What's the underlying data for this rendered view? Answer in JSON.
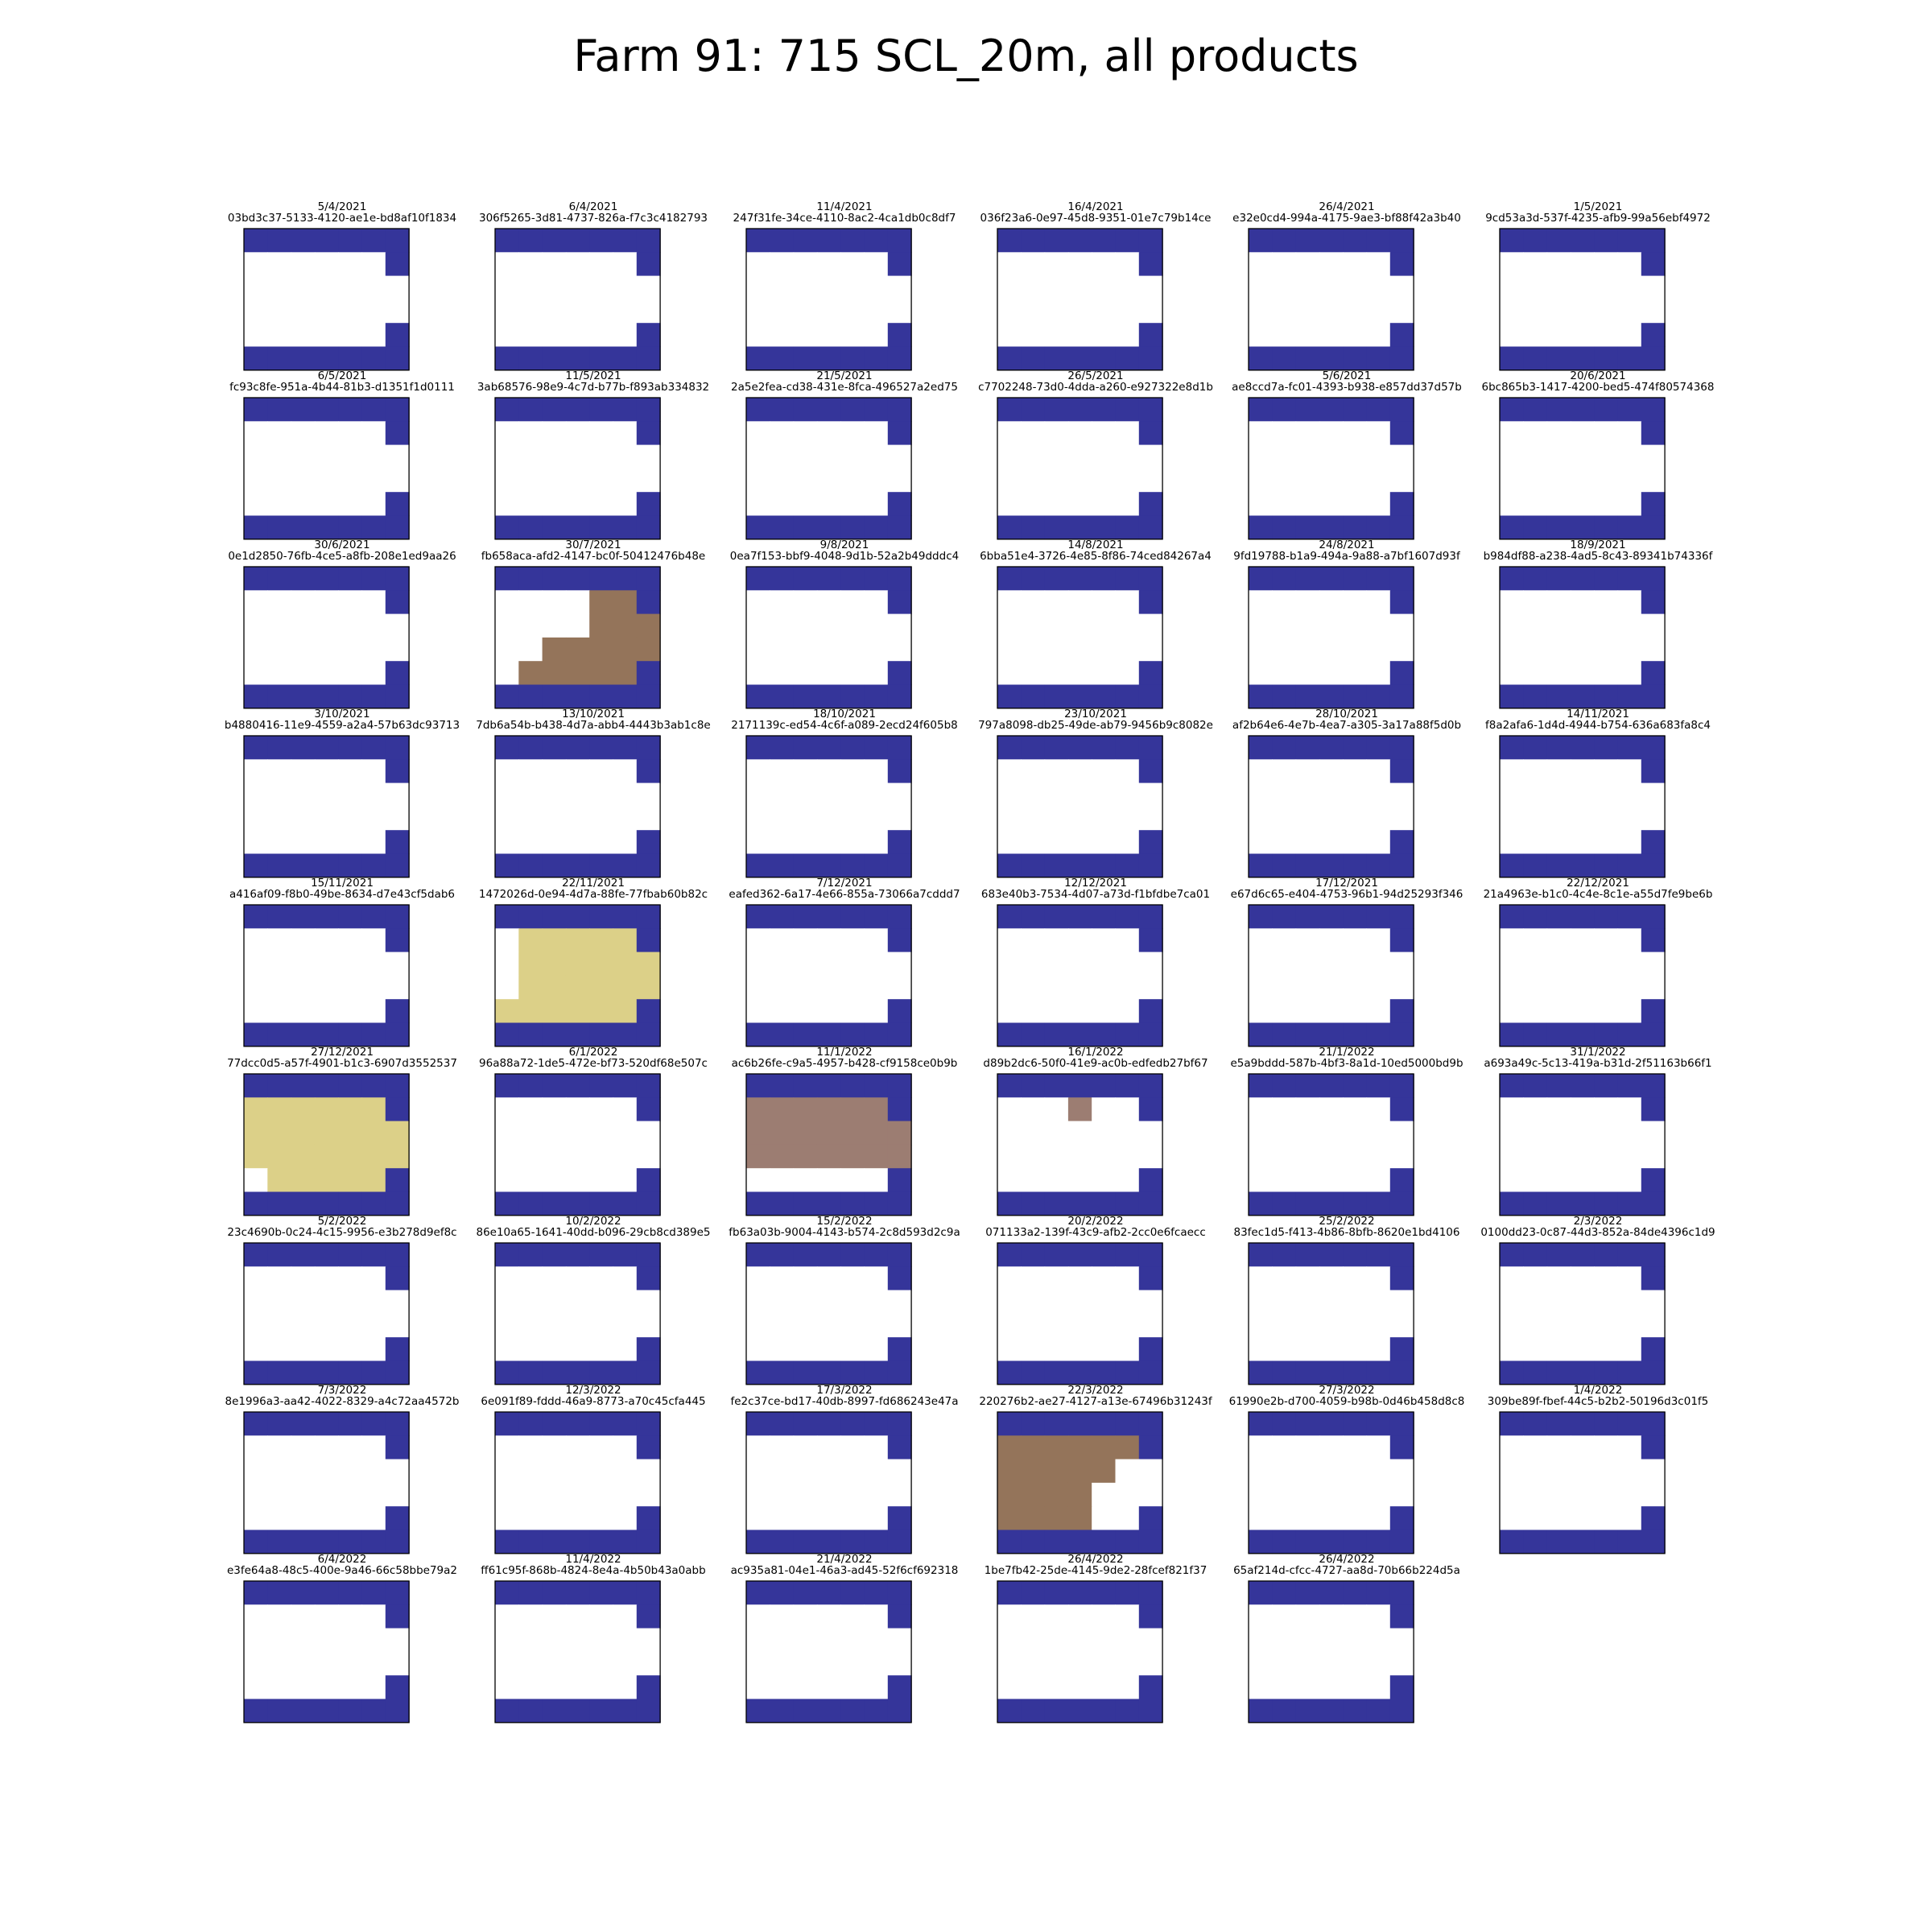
{
  "title": "Farm 91: 715 SCL_20m, all products",
  "colors": {
    "nodata_blue": "#35359a",
    "valid_white": "#ffffff",
    "brown": "#94745a",
    "khaki": "#dcd088",
    "mauve": "#9c7d72",
    "border": "#000000"
  },
  "chart_data": {
    "type": "heatmap",
    "title": "Farm 91: 715 SCL_20m, all products",
    "grid": {
      "rows": 10,
      "cols": 6
    },
    "base_mask": "field",
    "panels": [
      {
        "date": "5/4/2021",
        "product_id": "03bd3c37-5133-4120-ae1e-bd8af10f1834",
        "mask": "field"
      },
      {
        "date": "6/4/2021",
        "product_id": "306f5265-3d81-4737-826a-f7c3c4182793",
        "mask": "field"
      },
      {
        "date": "11/4/2021",
        "product_id": "247f31fe-34ce-4110-8ac2-4ca1db0c8df7",
        "mask": "field"
      },
      {
        "date": "16/4/2021",
        "product_id": "036f23a6-0e97-45d8-9351-01e7c79b14ce",
        "mask": "field"
      },
      {
        "date": "26/4/2021",
        "product_id": "e32e0cd4-994a-4175-9ae3-bf88f42a3b40",
        "mask": "field"
      },
      {
        "date": "1/5/2021",
        "product_id": "9cd53a3d-537f-4235-afb9-99a56ebf4972",
        "mask": "field"
      },
      {
        "date": "6/5/2021",
        "product_id": "fc93c8fe-951a-4b44-81b3-d1351f1d0111",
        "mask": "field"
      },
      {
        "date": "11/5/2021",
        "product_id": "3ab68576-98e9-4c7d-b77b-f893ab334832",
        "mask": "field"
      },
      {
        "date": "21/5/2021",
        "product_id": "2a5e2fea-cd38-431e-8fca-496527a2ed75",
        "mask": "field"
      },
      {
        "date": "26/5/2021",
        "product_id": "c7702248-73d0-4dda-a260-e927322e8d1b",
        "mask": "field"
      },
      {
        "date": "5/6/2021",
        "product_id": "ae8ccd7a-fc01-4393-b938-e857dd37d57b",
        "mask": "field"
      },
      {
        "date": "20/6/2021",
        "product_id": "6bc865b3-1417-4200-bed5-474f80574368",
        "mask": "field"
      },
      {
        "date": "30/6/2021",
        "product_id": "0e1d2850-76fb-4ce5-a8fb-208e1ed9aa26",
        "mask": "field"
      },
      {
        "date": "30/7/2021",
        "product_id": "fb658aca-afd2-4147-bc0f-50412476b48e",
        "mask": "field",
        "fill": {
          "color": "brown",
          "cells": [
            [
              1,
              4
            ],
            [
              1,
              5
            ],
            [
              2,
              4
            ],
            [
              2,
              5
            ],
            [
              2,
              6
            ],
            [
              3,
              2
            ],
            [
              3,
              3
            ],
            [
              3,
              4
            ],
            [
              3,
              5
            ],
            [
              3,
              6
            ],
            [
              4,
              1
            ],
            [
              4,
              2
            ],
            [
              4,
              3
            ],
            [
              4,
              4
            ],
            [
              4,
              5
            ]
          ]
        }
      },
      {
        "date": "9/8/2021",
        "product_id": "0ea7f153-bbf9-4048-9d1b-52a2b49dddc4",
        "mask": "field"
      },
      {
        "date": "14/8/2021",
        "product_id": "6bba51e4-3726-4e85-8f86-74ced84267a4",
        "mask": "field"
      },
      {
        "date": "24/8/2021",
        "product_id": "9fd19788-b1a9-494a-9a88-a7bf1607d93f",
        "mask": "field"
      },
      {
        "date": "18/9/2021",
        "product_id": "b984df88-a238-4ad5-8c43-89341b74336f",
        "mask": "field"
      },
      {
        "date": "3/10/2021",
        "product_id": "b4880416-11e9-4559-a2a4-57b63dc93713",
        "mask": "field"
      },
      {
        "date": "13/10/2021",
        "product_id": "7db6a54b-b438-4d7a-abb4-4443b3ab1c8e",
        "mask": "field"
      },
      {
        "date": "18/10/2021",
        "product_id": "2171139c-ed54-4c6f-a089-2ecd24f605b8",
        "mask": "field"
      },
      {
        "date": "23/10/2021",
        "product_id": "797a8098-db25-49de-ab79-9456b9c8082e",
        "mask": "field"
      },
      {
        "date": "28/10/2021",
        "product_id": "af2b64e6-4e7b-4ea7-a305-3a17a88f5d0b",
        "mask": "field"
      },
      {
        "date": "14/11/2021",
        "product_id": "f8a2afa6-1d4d-4944-b754-636a683fa8c4",
        "mask": "field"
      },
      {
        "date": "15/11/2021",
        "product_id": "a416af09-f8b0-49be-8634-d7e43cf5dab6",
        "mask": "field"
      },
      {
        "date": "22/11/2021",
        "product_id": "1472026d-0e94-4d7a-88fe-77fbab60b82c",
        "mask": "field",
        "fill": {
          "color": "khaki",
          "cells": [
            [
              1,
              1
            ],
            [
              1,
              2
            ],
            [
              1,
              3
            ],
            [
              1,
              4
            ],
            [
              1,
              5
            ],
            [
              2,
              1
            ],
            [
              2,
              2
            ],
            [
              2,
              3
            ],
            [
              2,
              4
            ],
            [
              2,
              5
            ],
            [
              2,
              6
            ],
            [
              3,
              1
            ],
            [
              3,
              2
            ],
            [
              3,
              3
            ],
            [
              3,
              4
            ],
            [
              3,
              5
            ],
            [
              3,
              6
            ],
            [
              4,
              0
            ],
            [
              4,
              1
            ],
            [
              4,
              2
            ],
            [
              4,
              3
            ],
            [
              4,
              4
            ],
            [
              4,
              5
            ]
          ]
        }
      },
      {
        "date": "7/12/2021",
        "product_id": "eafed362-6a17-4e66-855a-73066a7cddd7",
        "mask": "field"
      },
      {
        "date": "12/12/2021",
        "product_id": "683e40b3-7534-4d07-a73d-f1bfdbe7ca01",
        "mask": "field"
      },
      {
        "date": "17/12/2021",
        "product_id": "e67d6c65-e404-4753-96b1-94d25293f346",
        "mask": "field"
      },
      {
        "date": "22/12/2021",
        "product_id": "21a4963e-b1c0-4c4e-8c1e-a55d7fe9be6b",
        "mask": "field"
      },
      {
        "date": "27/12/2021",
        "product_id": "77dcc0d5-a57f-4901-b1c3-6907d3552537",
        "mask": "field",
        "fill": {
          "color": "khaki",
          "cells": [
            [
              1,
              0
            ],
            [
              1,
              1
            ],
            [
              1,
              2
            ],
            [
              1,
              3
            ],
            [
              1,
              4
            ],
            [
              1,
              5
            ],
            [
              2,
              0
            ],
            [
              2,
              1
            ],
            [
              2,
              2
            ],
            [
              2,
              3
            ],
            [
              2,
              4
            ],
            [
              2,
              5
            ],
            [
              2,
              6
            ],
            [
              3,
              0
            ],
            [
              3,
              1
            ],
            [
              3,
              2
            ],
            [
              3,
              3
            ],
            [
              3,
              4
            ],
            [
              3,
              5
            ],
            [
              3,
              6
            ],
            [
              4,
              1
            ],
            [
              4,
              2
            ],
            [
              4,
              3
            ],
            [
              4,
              4
            ],
            [
              4,
              5
            ]
          ]
        }
      },
      {
        "date": "6/1/2022",
        "product_id": "96a88a72-1de5-472e-bf73-520df68e507c",
        "mask": "field"
      },
      {
        "date": "11/1/2022",
        "product_id": "ac6b26fe-c9a5-4957-b428-cf9158ce0b9b",
        "mask": "field",
        "fill": {
          "color": "mauve",
          "cells": [
            [
              1,
              0
            ],
            [
              1,
              1
            ],
            [
              1,
              2
            ],
            [
              1,
              3
            ],
            [
              1,
              4
            ],
            [
              1,
              5
            ],
            [
              2,
              0
            ],
            [
              2,
              1
            ],
            [
              2,
              2
            ],
            [
              2,
              3
            ],
            [
              2,
              4
            ],
            [
              2,
              5
            ],
            [
              2,
              6
            ],
            [
              3,
              0
            ],
            [
              3,
              1
            ],
            [
              3,
              2
            ],
            [
              3,
              3
            ],
            [
              3,
              4
            ],
            [
              3,
              5
            ],
            [
              3,
              6
            ]
          ]
        }
      },
      {
        "date": "16/1/2022",
        "product_id": "d89b2dc6-50f0-41e9-ac0b-edfedb27bf67",
        "mask": "field",
        "fill": {
          "color": "mauve",
          "cells": [
            [
              1,
              3
            ]
          ]
        }
      },
      {
        "date": "21/1/2022",
        "product_id": "e5a9bddd-587b-4bf3-8a1d-10ed5000bd9b",
        "mask": "field"
      },
      {
        "date": "31/1/2022",
        "product_id": "a693a49c-5c13-419a-b31d-2f51163b66f1",
        "mask": "field"
      },
      {
        "date": "5/2/2022",
        "product_id": "23c4690b-0c24-4c15-9956-e3b278d9ef8c",
        "mask": "field"
      },
      {
        "date": "10/2/2022",
        "product_id": "86e10a65-1641-40dd-b096-29cb8cd389e5",
        "mask": "field"
      },
      {
        "date": "15/2/2022",
        "product_id": "fb63a03b-9004-4143-b574-2c8d593d2c9a",
        "mask": "field"
      },
      {
        "date": "20/2/2022",
        "product_id": "071133a2-139f-43c9-afb2-2cc0e6fcaecc",
        "mask": "field"
      },
      {
        "date": "25/2/2022",
        "product_id": "83fec1d5-f413-4b86-8bfb-8620e1bd4106",
        "mask": "field"
      },
      {
        "date": "2/3/2022",
        "product_id": "0100dd23-0c87-44d3-852a-84de4396c1d9",
        "mask": "field"
      },
      {
        "date": "7/3/2022",
        "product_id": "8e1996a3-aa42-4022-8329-a4c72aa4572b",
        "mask": "field"
      },
      {
        "date": "12/3/2022",
        "product_id": "6e091f89-fddd-46a9-8773-a70c45cfa445",
        "mask": "field"
      },
      {
        "date": "17/3/2022",
        "product_id": "fe2c37ce-bd17-40db-8997-fd686243e47a",
        "mask": "field"
      },
      {
        "date": "22/3/2022",
        "product_id": "220276b2-ae27-4127-a13e-67496b31243f",
        "mask": "field",
        "fill": {
          "color": "brown",
          "cells": [
            [
              1,
              0
            ],
            [
              1,
              1
            ],
            [
              1,
              2
            ],
            [
              1,
              3
            ],
            [
              1,
              4
            ],
            [
              1,
              5
            ],
            [
              2,
              0
            ],
            [
              2,
              1
            ],
            [
              2,
              2
            ],
            [
              2,
              3
            ],
            [
              2,
              4
            ],
            [
              3,
              0
            ],
            [
              3,
              1
            ],
            [
              3,
              2
            ],
            [
              3,
              3
            ],
            [
              4,
              0
            ],
            [
              4,
              1
            ],
            [
              4,
              2
            ],
            [
              4,
              3
            ]
          ]
        }
      },
      {
        "date": "27/3/2022",
        "product_id": "61990e2b-d700-4059-b98b-0d46b458d8c8",
        "mask": "field"
      },
      {
        "date": "1/4/2022",
        "product_id": "309be89f-fbef-44c5-b2b2-50196d3c01f5",
        "mask": "field"
      },
      {
        "date": "6/4/2022",
        "product_id": "e3fe64a8-48c5-400e-9a46-66c58bbe79a2",
        "mask": "field"
      },
      {
        "date": "11/4/2022",
        "product_id": "ff61c95f-868b-4824-8e4a-4b50b43a0abb",
        "mask": "field"
      },
      {
        "date": "21/4/2022",
        "product_id": "ac935a81-04e1-46a3-ad45-52f6cf692318",
        "mask": "field"
      },
      {
        "date": "26/4/2022",
        "product_id": "1be7fb42-25de-4145-9de2-28fcef821f37",
        "mask": "field"
      },
      {
        "date": "26/4/2022",
        "product_id": "65af214d-cfcc-4727-aa8d-70b66b224d5a",
        "mask": "field"
      }
    ]
  }
}
